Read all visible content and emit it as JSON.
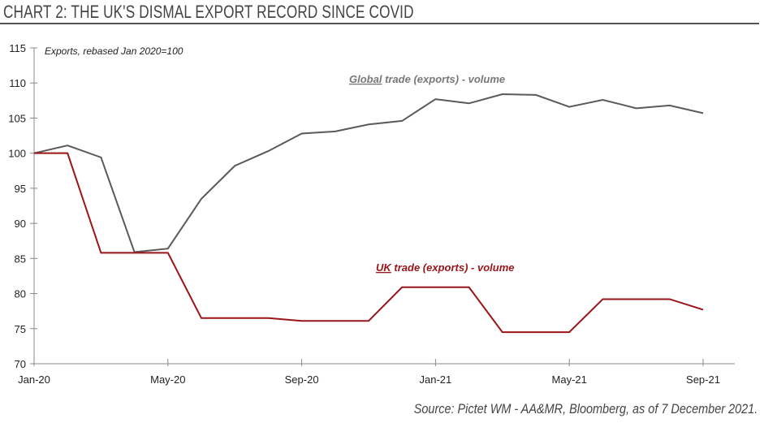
{
  "chart_data": {
    "type": "line",
    "title": "CHART 2: THE UK'S DISMAL EXPORT RECORD SINCE COVID",
    "ylabel": "Exports, rebased Jan 2020=100",
    "source": "Source: Pictet WM - AA&MR, Bloomberg, as of 7 December 2021.",
    "ylim": [
      70,
      115
    ],
    "yticks": [
      "70",
      "75",
      "80",
      "85",
      "90",
      "95",
      "100",
      "105",
      "110",
      "115"
    ],
    "xtick_labels": [
      "Jan-20",
      "May-20",
      "Sep-20",
      "Jan-21",
      "May-21",
      "Sep-21"
    ],
    "x": [
      "Jan-20",
      "Feb-20",
      "Mar-20",
      "Apr-20",
      "May-20",
      "Jun-20",
      "Jul-20",
      "Aug-20",
      "Sep-20",
      "Oct-20",
      "Nov-20",
      "Dec-20",
      "Jan-21",
      "Feb-21",
      "Mar-21",
      "Apr-21",
      "May-21",
      "Jun-21",
      "Jul-21",
      "Aug-21",
      "Sep-21"
    ],
    "grid": false,
    "series": [
      {
        "name": "Global trade (exports) - volume",
        "name_underlined": "Global",
        "name_rest": " trade (exports) - volume",
        "color": "#5a5a5a",
        "values": [
          100,
          101.1,
          99.4,
          85.9,
          86.4,
          93.5,
          98.2,
          100.3,
          102.8,
          103.1,
          104.1,
          104.6,
          107.7,
          107.1,
          108.4,
          108.3,
          106.6,
          107.6,
          106.4,
          106.8,
          105.7
        ]
      },
      {
        "name": "UK trade (exports) - volume",
        "name_underlined": "UK",
        "name_rest": " trade (exports) - volume",
        "color": "#9b1418",
        "values": [
          100,
          100,
          85.8,
          85.8,
          85.8,
          76.5,
          76.5,
          76.5,
          76.1,
          76.1,
          76.1,
          80.9,
          80.9,
          80.9,
          74.5,
          74.5,
          74.5,
          79.2,
          79.2,
          79.2,
          77.7
        ]
      }
    ]
  }
}
